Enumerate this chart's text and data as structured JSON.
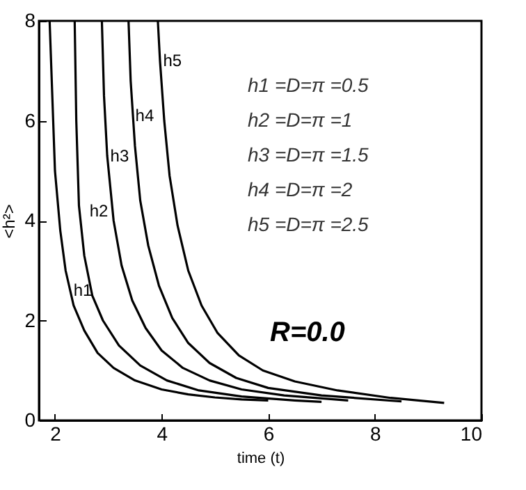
{
  "chart_data": {
    "type": "line",
    "xlabel": "time (t)",
    "ylabel": "<h²>",
    "xlim": [
      1.7,
      10
    ],
    "ylim": [
      0,
      8
    ],
    "xticks": [
      2,
      4,
      6,
      8,
      10
    ],
    "yticks": [
      0,
      2,
      4,
      6,
      8
    ],
    "grid": false,
    "legend": false,
    "marker": "none",
    "line_style": "solid",
    "series": [
      {
        "color": "#000000",
        "x": [
          1.9,
          1.95,
          2.0,
          2.1,
          2.2,
          2.35,
          2.55,
          2.8,
          3.1,
          3.5,
          4.0,
          4.5,
          5.0,
          5.5,
          6.0
        ],
        "values": [
          8,
          6.5,
          5,
          3.8,
          3.0,
          2.3,
          1.8,
          1.35,
          1.05,
          0.8,
          0.62,
          0.52,
          0.46,
          0.42,
          0.4
        ]
      },
      {
        "color": "#000000",
        "x": [
          2.37,
          2.4,
          2.45,
          2.55,
          2.7,
          2.9,
          3.2,
          3.6,
          4.1,
          4.7,
          5.5,
          6.5,
          7.0
        ],
        "values": [
          8,
          6,
          4.3,
          3.3,
          2.5,
          2.0,
          1.5,
          1.1,
          0.8,
          0.6,
          0.48,
          0.4,
          0.37
        ]
      },
      {
        "color": "#000000",
        "x": [
          2.88,
          2.92,
          2.98,
          3.1,
          3.25,
          3.45,
          3.7,
          4.0,
          4.4,
          4.9,
          5.5,
          6.3,
          7.5
        ],
        "values": [
          8,
          6.5,
          5.3,
          4.0,
          3.1,
          2.4,
          1.85,
          1.4,
          1.05,
          0.8,
          0.62,
          0.5,
          0.4
        ]
      },
      {
        "color": "#000000",
        "x": [
          3.38,
          3.42,
          3.5,
          3.6,
          3.75,
          3.95,
          4.2,
          4.5,
          4.9,
          5.4,
          6.0,
          7.0,
          8.5
        ],
        "values": [
          8,
          6.8,
          5.5,
          4.4,
          3.5,
          2.7,
          2.05,
          1.55,
          1.15,
          0.85,
          0.65,
          0.5,
          0.38
        ]
      },
      {
        "color": "#000000",
        "x": [
          3.93,
          3.97,
          4.05,
          4.15,
          4.3,
          4.5,
          4.75,
          5.05,
          5.45,
          5.9,
          6.5,
          7.3,
          8.3,
          9.3
        ],
        "values": [
          8,
          7.2,
          6.0,
          4.9,
          3.9,
          3.0,
          2.3,
          1.75,
          1.3,
          1.0,
          0.78,
          0.6,
          0.45,
          0.35
        ]
      }
    ],
    "annotations": [
      {
        "text": "h1",
        "x": 2.27,
        "y": 2.6
      },
      {
        "text": "h2",
        "x": 2.57,
        "y": 4.2
      },
      {
        "text": "h3",
        "x": 2.96,
        "y": 5.3
      },
      {
        "text": "h4",
        "x": 3.43,
        "y": 6.1
      },
      {
        "text": "h5",
        "x": 3.95,
        "y": 7.2
      },
      "h1 =D=π =0.5",
      "h2 =D=π =1",
      "h3 =D=π =1.5",
      "h4 =D=π =2",
      "h5 =D=π =2.5",
      "R=0.0"
    ]
  }
}
